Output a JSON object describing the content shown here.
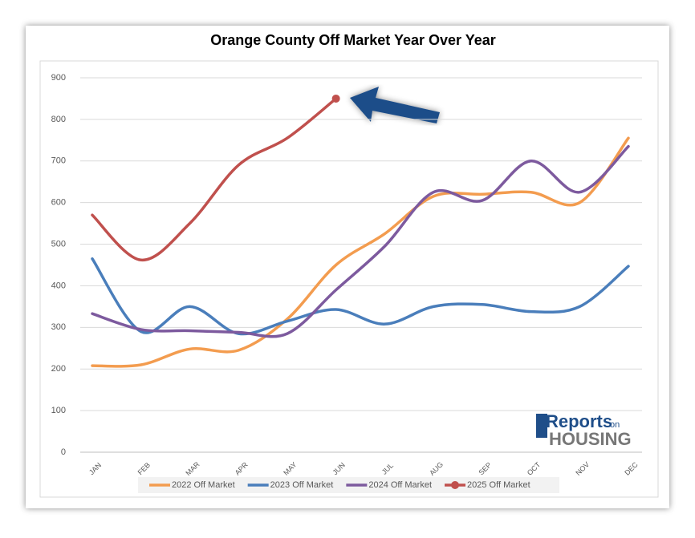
{
  "chart_data": {
    "type": "line",
    "title": "Orange County Off Market Year Over Year",
    "categories": [
      "JAN",
      "FEB",
      "MAR",
      "APR",
      "MAY",
      "JUN",
      "JUL",
      "AUG",
      "SEP",
      "OCT",
      "NOV",
      "DEC"
    ],
    "series": [
      {
        "name": "2022 Off Market",
        "color": "#f39c4f",
        "values": [
          208,
          210,
          248,
          245,
          320,
          450,
          525,
          615,
          620,
          625,
          600,
          755
        ]
      },
      {
        "name": "2023 Off Market",
        "color": "#4a7ebb",
        "values": [
          465,
          290,
          350,
          285,
          315,
          343,
          308,
          350,
          355,
          338,
          350,
          447
        ]
      },
      {
        "name": "2024 Off Market",
        "color": "#7d5a9e",
        "values": [
          333,
          295,
          292,
          288,
          285,
          390,
          495,
          625,
          605,
          700,
          625,
          735
        ]
      },
      {
        "name": "2025 Off Market",
        "color": "#c0504d",
        "marker": "last",
        "values": [
          570,
          462,
          550,
          690,
          755,
          850,
          null,
          null,
          null,
          null,
          null,
          null
        ]
      }
    ],
    "ylim": [
      0,
      900
    ],
    "yticks": [
      0,
      100,
      200,
      300,
      400,
      500,
      600,
      700,
      800,
      900
    ],
    "grid": true,
    "smooth": true,
    "legend": "bottom",
    "logo": {
      "brand": "Reports",
      "small": "on",
      "sub": "HOUSING"
    }
  }
}
